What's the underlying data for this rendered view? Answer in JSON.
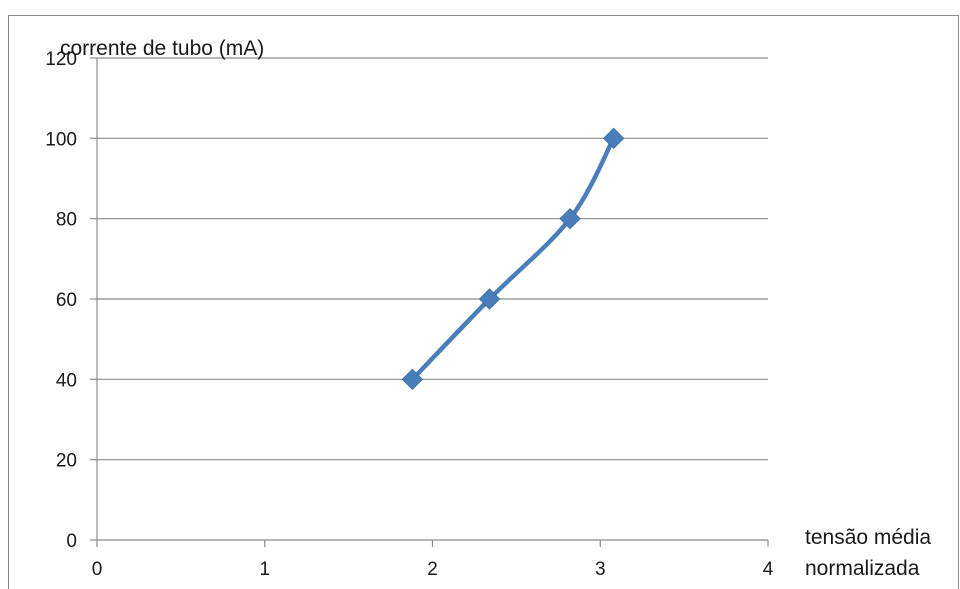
{
  "chart_data": {
    "type": "line",
    "title": "",
    "ylabel": "corrente de tubo (mA)",
    "xlabel_lines": [
      "tensão média",
      "normalizada"
    ],
    "xlim": [
      0,
      4
    ],
    "ylim": [
      0,
      120
    ],
    "x_ticks": [
      0,
      1,
      2,
      3,
      4
    ],
    "y_ticks": [
      0,
      20,
      40,
      60,
      80,
      100,
      120
    ],
    "x_tick_labels": [
      "0",
      "1",
      "2",
      "3",
      "4"
    ],
    "y_tick_labels": [
      "0",
      "20",
      "40",
      "60",
      "80",
      "100",
      "120"
    ],
    "grid": "horizontal",
    "legend": "none",
    "series": [
      {
        "x": [
          1.88,
          2.34,
          2.82,
          3.08
        ],
        "y": [
          40,
          60,
          80,
          100
        ],
        "color": "#4a7ebb",
        "marker": "diamond",
        "smooth": true
      }
    ]
  }
}
